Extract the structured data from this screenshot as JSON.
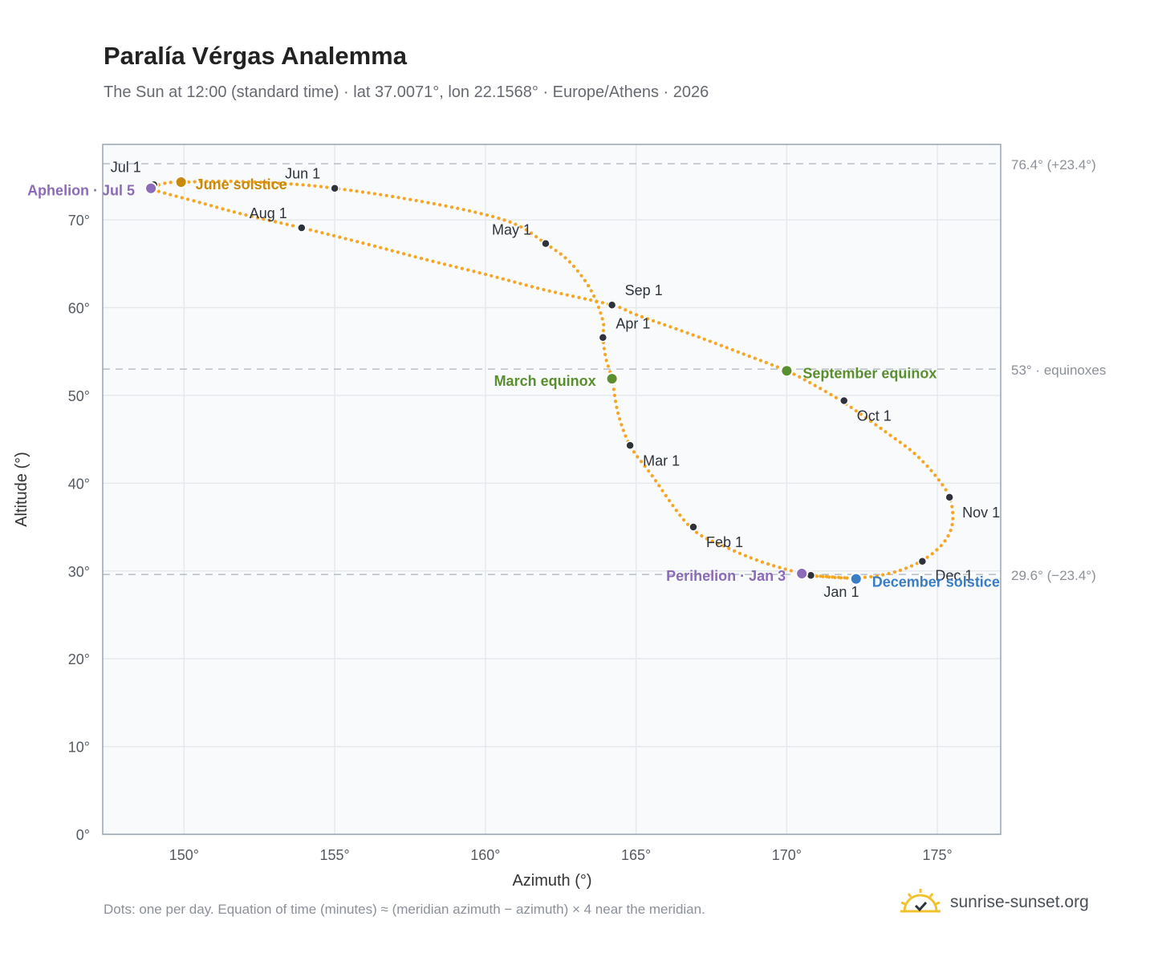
{
  "header": {
    "title": "Paralía Vérgas Analemma",
    "subtitle": "The Sun at 12:00 (standard time) · lat 37.0071°, lon 22.1568° · Europe/Athens · 2026"
  },
  "footer": {
    "note": "Dots: one per day. Equation of time (minutes) ≈ (meridian azimuth − azimuth) × 4 near the meridian.",
    "brand": "sunrise-sunset.org",
    "brand_icon": "sun-logo-icon"
  },
  "colors": {
    "curve": "#f5a623",
    "month_marker": "#2e333b",
    "solstice_june": "#c98a0c",
    "solstice_december": "#3a7dc4",
    "equinox": "#5a8f2e",
    "apsis": "#8c6bb8",
    "reference_line": "#b7bec6",
    "plot_background": "#f8fafc",
    "grid": "#e5e9ee",
    "axis_border": "#9aa5b1"
  },
  "chart_data": {
    "type": "scatter",
    "xlabel": "Azimuth (°)",
    "ylabel": "Altitude (°)",
    "xlim": [
      147.3,
      177.1
    ],
    "ylim": [
      0,
      78.6
    ],
    "x_ticks": [
      150,
      155,
      160,
      165,
      170,
      175
    ],
    "y_ticks": [
      0,
      10,
      20,
      30,
      40,
      50,
      60,
      70
    ],
    "x_tick_labels": [
      "150°",
      "155°",
      "160°",
      "165°",
      "170°",
      "175°"
    ],
    "y_tick_labels": [
      "0°",
      "10°",
      "20°",
      "30°",
      "40°",
      "50°",
      "60°",
      "70°"
    ],
    "grid": true,
    "path_series": {
      "name": "Daily sun position",
      "points": [
        [
          171.0,
          29.4
        ],
        [
          172.3,
          29.2
        ],
        [
          173.5,
          29.8
        ],
        [
          174.5,
          31.2
        ],
        [
          175.2,
          33.2
        ],
        [
          175.5,
          35.5
        ],
        [
          175.4,
          38.4
        ],
        [
          174.9,
          41.0
        ],
        [
          174.2,
          43.5
        ],
        [
          173.3,
          45.8
        ],
        [
          172.4,
          48.0
        ],
        [
          171.8,
          49.4
        ],
        [
          170.9,
          51.2
        ],
        [
          170.0,
          52.8
        ],
        [
          168.5,
          54.8
        ],
        [
          166.8,
          57.0
        ],
        [
          165.0,
          59.2
        ],
        [
          164.2,
          60.3
        ],
        [
          162.0,
          62.0
        ],
        [
          160.0,
          63.8
        ],
        [
          158.0,
          65.5
        ],
        [
          156.0,
          67.3
        ],
        [
          153.9,
          69.1
        ],
        [
          152.0,
          70.6
        ],
        [
          150.5,
          72.0
        ],
        [
          149.2,
          73.2
        ],
        [
          148.9,
          73.6
        ],
        [
          149.4,
          74.2
        ],
        [
          150.0,
          74.3
        ],
        [
          151.5,
          74.4
        ],
        [
          153.5,
          74.1
        ],
        [
          155.0,
          73.6
        ],
        [
          157.2,
          72.5
        ],
        [
          159.5,
          71.0
        ],
        [
          161.0,
          69.5
        ],
        [
          162.0,
          67.3
        ],
        [
          162.8,
          65.2
        ],
        [
          163.5,
          62.0
        ],
        [
          163.9,
          58.5
        ],
        [
          163.9,
          56.6
        ],
        [
          164.0,
          54.2
        ],
        [
          164.2,
          51.9
        ],
        [
          164.4,
          48.0
        ],
        [
          164.8,
          44.3
        ],
        [
          165.5,
          41.0
        ],
        [
          166.8,
          35.0
        ],
        [
          168.0,
          32.7
        ],
        [
          169.2,
          31.0
        ],
        [
          170.5,
          29.7
        ],
        [
          170.8,
          29.5
        ],
        [
          172.0,
          29.2
        ]
      ]
    },
    "month_markers": [
      {
        "label": "Jan 1",
        "x": 170.8,
        "y": 29.5
      },
      {
        "label": "Feb 1",
        "x": 166.9,
        "y": 35.0
      },
      {
        "label": "Mar 1",
        "x": 164.8,
        "y": 44.3
      },
      {
        "label": "Apr 1",
        "x": 163.9,
        "y": 56.6
      },
      {
        "label": "May 1",
        "x": 162.0,
        "y": 67.3
      },
      {
        "label": "Jun 1",
        "x": 155.0,
        "y": 73.6
      },
      {
        "label": "Jul 1",
        "x": 149.0,
        "y": 74.0
      },
      {
        "label": "Aug 1",
        "x": 153.9,
        "y": 69.1
      },
      {
        "label": "Sep 1",
        "x": 164.2,
        "y": 60.3
      },
      {
        "label": "Oct 1",
        "x": 171.9,
        "y": 49.4
      },
      {
        "label": "Nov 1",
        "x": 175.4,
        "y": 38.4
      },
      {
        "label": "Dec 1",
        "x": 174.5,
        "y": 31.1
      }
    ],
    "events": [
      {
        "label": "June solstice",
        "x": 149.9,
        "y": 74.3,
        "color": "#c98a0c"
      },
      {
        "label": "December solstice",
        "x": 172.3,
        "y": 29.1,
        "color": "#3a7dc4"
      },
      {
        "label": "March equinox",
        "x": 164.2,
        "y": 51.9,
        "color": "#5a8f2e"
      },
      {
        "label": "September equinox",
        "x": 170.0,
        "y": 52.8,
        "color": "#5a8f2e"
      },
      {
        "label": "Aphelion · Jul 5",
        "x": 148.9,
        "y": 73.6,
        "color": "#8c6bb8"
      },
      {
        "label": "Perihelion · Jan 3",
        "x": 170.5,
        "y": 29.7,
        "color": "#8c6bb8"
      }
    ],
    "reference_lines": [
      {
        "y": 76.4,
        "label": "76.4° (+23.4°)"
      },
      {
        "y": 53.0,
        "label": "53° · equinoxes"
      },
      {
        "y": 29.6,
        "label": "29.6° (−23.4°)"
      }
    ]
  }
}
